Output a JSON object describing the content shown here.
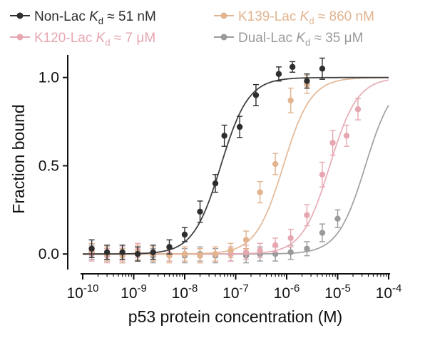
{
  "colors": {
    "Non-Lac": "#2e2e2e",
    "K139-Lac": "#e2b48f",
    "K120-Lac": "#e6a7b1",
    "Dual-Lac": "#9a9a9a",
    "axis": "#111111"
  },
  "chart_data": {
    "type": "scatter",
    "title": "",
    "xlabel": "p53 protein concentration (M)",
    "ylabel": "Fraction bound",
    "xscale": "log",
    "xlim": [
      1e-10,
      0.0001
    ],
    "ylim": [
      -0.08,
      1.12
    ],
    "grid": false,
    "legend_position": "top",
    "x_ticks": [
      {
        "value": 1e-10,
        "base": "10",
        "exp": "-10"
      },
      {
        "value": 1e-09,
        "base": "10",
        "exp": "-9"
      },
      {
        "value": 1e-08,
        "base": "10",
        "exp": "-8"
      },
      {
        "value": 1e-07,
        "base": "10",
        "exp": "-7"
      },
      {
        "value": 1e-06,
        "base": "10",
        "exp": "-6"
      },
      {
        "value": 1e-05,
        "base": "10",
        "exp": "-5"
      },
      {
        "value": 0.0001,
        "base": "10",
        "exp": "-4"
      }
    ],
    "y_ticks": [
      {
        "value": 0.0,
        "label": "0.0"
      },
      {
        "value": 0.5,
        "label": "0.5"
      },
      {
        "value": 1.0,
        "label": "1.0"
      }
    ],
    "series": [
      {
        "name": "Non-Lac",
        "kd_prefix": "K",
        "kd_sub": "d",
        "kd_value": " ≈ 51 nM",
        "kd": 5.1e-08,
        "points": [
          {
            "x": 1.5e-10,
            "y": 0.03,
            "err": 0.05
          },
          {
            "x": 3e-10,
            "y": 0.01,
            "err": 0.04
          },
          {
            "x": 6e-10,
            "y": 0.01,
            "err": 0.04
          },
          {
            "x": 1.2e-09,
            "y": 0.0,
            "err": 0.04
          },
          {
            "x": 2.4e-09,
            "y": 0.01,
            "err": 0.04
          },
          {
            "x": 5e-09,
            "y": 0.04,
            "err": 0.04
          },
          {
            "x": 1e-08,
            "y": 0.11,
            "err": 0.04
          },
          {
            "x": 2e-08,
            "y": 0.24,
            "err": 0.06
          },
          {
            "x": 4e-08,
            "y": 0.4,
            "err": 0.05
          },
          {
            "x": 6e-08,
            "y": 0.67,
            "err": 0.06
          },
          {
            "x": 1.2e-07,
            "y": 0.72,
            "err": 0.06
          },
          {
            "x": 2.5e-07,
            "y": 0.9,
            "err": 0.06
          },
          {
            "x": 7e-07,
            "y": 1.02,
            "err": 0.04
          },
          {
            "x": 1.3e-06,
            "y": 1.06,
            "err": 0.03
          },
          {
            "x": 2.5e-06,
            "y": 0.98,
            "err": 0.04
          },
          {
            "x": 5e-06,
            "y": 1.05,
            "err": 0.06
          }
        ]
      },
      {
        "name": "K139-Lac",
        "kd_prefix": "K",
        "kd_sub": "d",
        "kd_value": " ≈ 860 nM",
        "kd": 8.6e-07,
        "points": [
          {
            "x": 1.5e-10,
            "y": 0.02,
            "err": 0.04
          },
          {
            "x": 3e-10,
            "y": 0.0,
            "err": 0.04
          },
          {
            "x": 6e-10,
            "y": -0.01,
            "err": 0.04
          },
          {
            "x": 1.2e-09,
            "y": 0.01,
            "err": 0.04
          },
          {
            "x": 2.4e-09,
            "y": 0.0,
            "err": 0.04
          },
          {
            "x": 5e-09,
            "y": -0.01,
            "err": 0.04
          },
          {
            "x": 1e-08,
            "y": 0.0,
            "err": 0.04
          },
          {
            "x": 2e-08,
            "y": -0.01,
            "err": 0.04
          },
          {
            "x": 4e-08,
            "y": 0.0,
            "err": 0.04
          },
          {
            "x": 8e-08,
            "y": 0.02,
            "err": 0.04
          },
          {
            "x": 1.6e-07,
            "y": 0.08,
            "err": 0.05
          },
          {
            "x": 3e-07,
            "y": 0.35,
            "err": 0.06
          },
          {
            "x": 6e-07,
            "y": 0.51,
            "err": 0.06
          },
          {
            "x": 1.2e-06,
            "y": 0.87,
            "err": 0.07
          },
          {
            "x": 2.5e-06,
            "y": 0.96,
            "err": 0.05
          }
        ]
      },
      {
        "name": "K120-Lac",
        "kd_prefix": "K",
        "kd_sub": "d",
        "kd_value": " ≈ 7 μM",
        "kd": 7e-06,
        "points": [
          {
            "x": 1.5e-10,
            "y": 0.0,
            "err": 0.04
          },
          {
            "x": 3e-10,
            "y": -0.01,
            "err": 0.04
          },
          {
            "x": 6e-10,
            "y": 0.0,
            "err": 0.04
          },
          {
            "x": 1.2e-09,
            "y": 0.02,
            "err": 0.04
          },
          {
            "x": 2.4e-09,
            "y": 0.0,
            "err": 0.04
          },
          {
            "x": 5e-09,
            "y": 0.0,
            "err": 0.04
          },
          {
            "x": 1e-08,
            "y": 0.0,
            "err": 0.04
          },
          {
            "x": 2e-08,
            "y": -0.01,
            "err": 0.04
          },
          {
            "x": 4e-08,
            "y": 0.0,
            "err": 0.04
          },
          {
            "x": 8e-08,
            "y": 0.0,
            "err": 0.04
          },
          {
            "x": 1.6e-07,
            "y": 0.01,
            "err": 0.04
          },
          {
            "x": 3e-07,
            "y": 0.02,
            "err": 0.04
          },
          {
            "x": 6e-07,
            "y": 0.05,
            "err": 0.04
          },
          {
            "x": 1.2e-06,
            "y": 0.09,
            "err": 0.05
          },
          {
            "x": 2.5e-06,
            "y": 0.22,
            "err": 0.06
          },
          {
            "x": 5e-06,
            "y": 0.45,
            "err": 0.07
          },
          {
            "x": 8e-06,
            "y": 0.63,
            "err": 0.07
          },
          {
            "x": 1.5e-05,
            "y": 0.67,
            "err": 0.06
          },
          {
            "x": 2.5e-05,
            "y": 0.82,
            "err": 0.06
          }
        ]
      },
      {
        "name": "Dual-Lac",
        "kd_prefix": "K",
        "kd_sub": "d",
        "kd_value": " ≈ 35 μM",
        "kd": 3.5e-05,
        "points": [
          {
            "x": 1.5e-10,
            "y": 0.01,
            "err": 0.04
          },
          {
            "x": 3e-10,
            "y": 0.0,
            "err": 0.04
          },
          {
            "x": 6e-10,
            "y": -0.01,
            "err": 0.04
          },
          {
            "x": 1.2e-09,
            "y": 0.0,
            "err": 0.04
          },
          {
            "x": 2.4e-09,
            "y": -0.01,
            "err": 0.04
          },
          {
            "x": 5e-09,
            "y": 0.0,
            "err": 0.04
          },
          {
            "x": 1e-08,
            "y": -0.01,
            "err": 0.04
          },
          {
            "x": 2e-08,
            "y": 0.0,
            "err": 0.04
          },
          {
            "x": 4e-08,
            "y": -0.01,
            "err": 0.04
          },
          {
            "x": 8e-08,
            "y": 0.0,
            "err": 0.04
          },
          {
            "x": 1.6e-07,
            "y": -0.01,
            "err": 0.04
          },
          {
            "x": 3e-07,
            "y": 0.0,
            "err": 0.04
          },
          {
            "x": 6e-07,
            "y": 0.0,
            "err": 0.04
          },
          {
            "x": 1.2e-06,
            "y": 0.01,
            "err": 0.04
          },
          {
            "x": 2.5e-06,
            "y": 0.03,
            "err": 0.04
          },
          {
            "x": 5e-06,
            "y": 0.12,
            "err": 0.05
          },
          {
            "x": 1e-05,
            "y": 0.2,
            "err": 0.05
          }
        ]
      }
    ]
  }
}
